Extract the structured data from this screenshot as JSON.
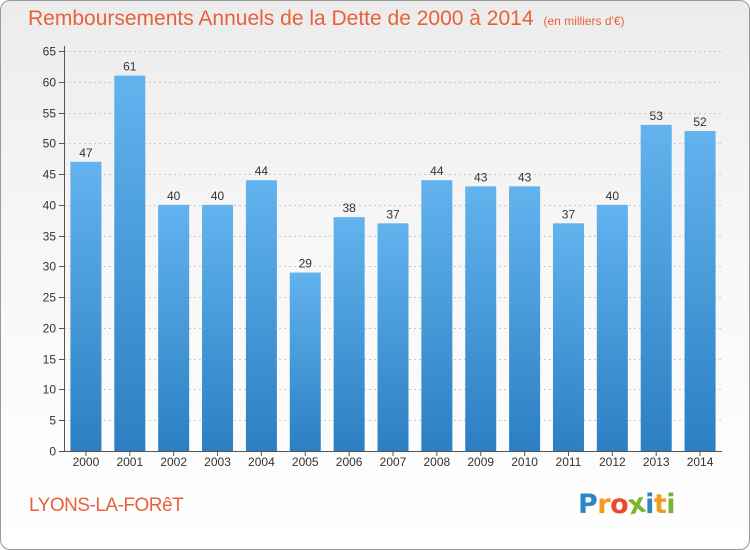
{
  "title": "Remboursements Annuels de la Dette de 2000 à 2014",
  "unit": "(en milliers d'€)",
  "city": "LYONS-LA-FORêT",
  "logo": {
    "letters": [
      "P",
      "r",
      "o",
      "x",
      "i",
      "t",
      "i"
    ],
    "colors": [
      "#2e86c8",
      "#f39a1f",
      "#e84a2f",
      "#7ab52f",
      "#2e86c8",
      "#f39a1f",
      "#7ab52f"
    ]
  },
  "colors": {
    "accent": "#e8613a",
    "bar_top": "#62b3ee",
    "bar_bottom": "#2c7fc2"
  },
  "chart_data": {
    "type": "bar",
    "categories": [
      "2000",
      "2001",
      "2002",
      "2003",
      "2004",
      "2005",
      "2006",
      "2007",
      "2008",
      "2009",
      "2010",
      "2011",
      "2012",
      "2013",
      "2014"
    ],
    "values": [
      47,
      61,
      40,
      40,
      44,
      29,
      38,
      37,
      44,
      43,
      43,
      37,
      40,
      53,
      52
    ],
    "data_labels": [
      "47",
      "61",
      "40",
      "40",
      "44",
      "29",
      "38",
      "37",
      "44",
      "43",
      "43",
      "37",
      "40",
      "53",
      "52"
    ],
    "y_ticks": [
      "0",
      "5",
      "10",
      "15",
      "20",
      "25",
      "30",
      "35",
      "40",
      "45",
      "50",
      "55",
      "60",
      "65"
    ],
    "ylim": [
      0,
      65
    ],
    "grid": true
  }
}
